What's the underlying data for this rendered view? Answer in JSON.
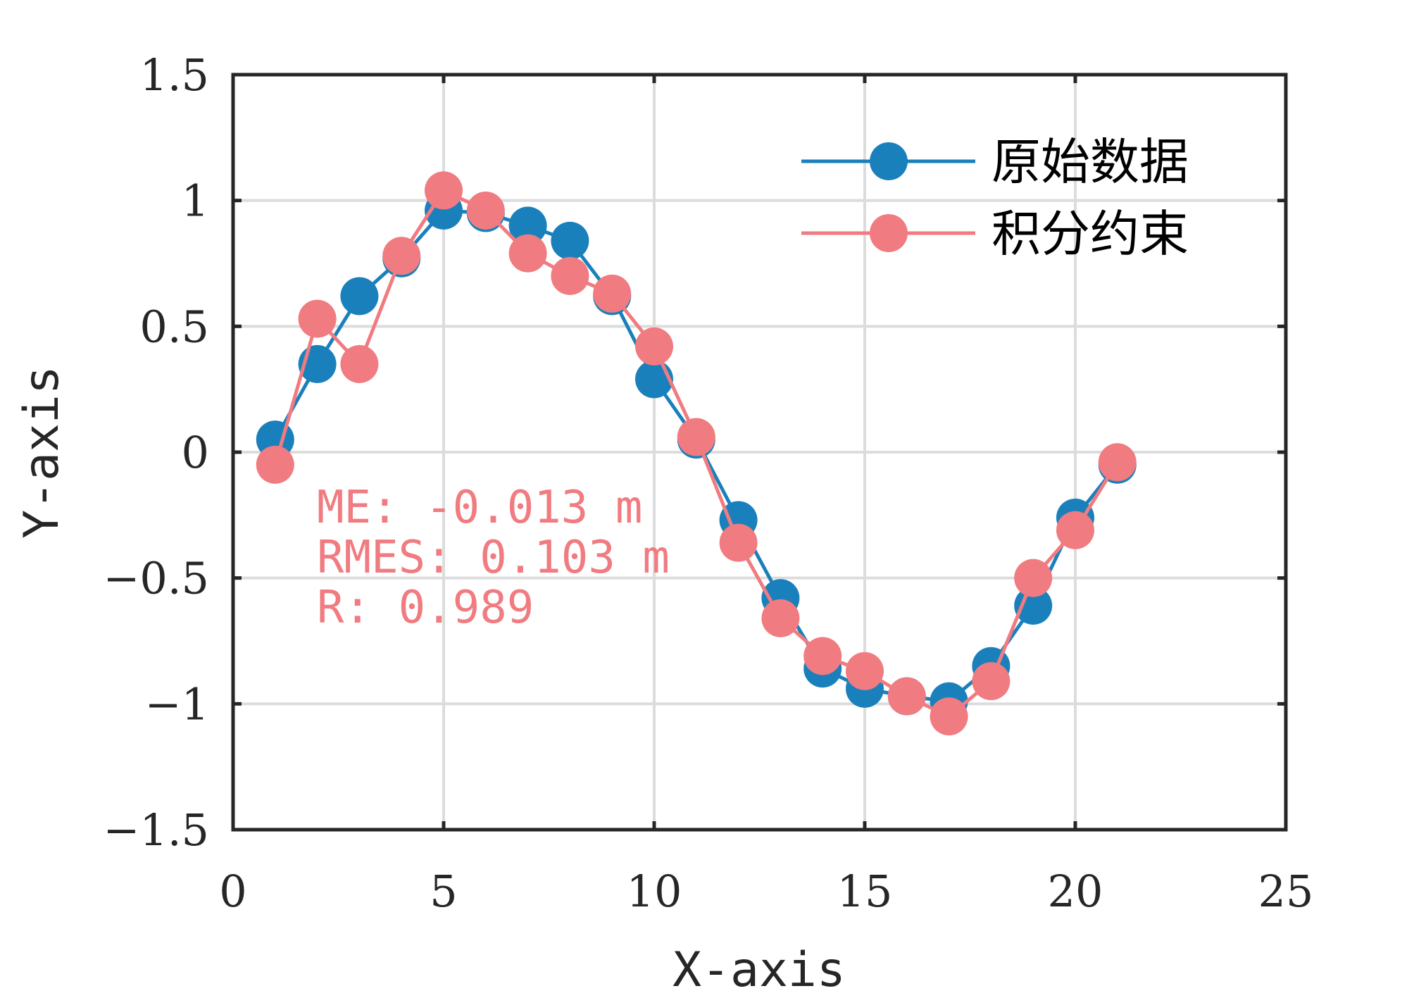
{
  "chart_data": {
    "type": "line",
    "title": "",
    "xlabel": "X-axis",
    "ylabel": "Y-axis",
    "xlim": [
      0,
      25
    ],
    "ylim": [
      -1.5,
      1.5
    ],
    "xticks": [
      0,
      5,
      10,
      15,
      20,
      25
    ],
    "xtick_labels": [
      "0",
      "5",
      "10",
      "15",
      "20",
      "25"
    ],
    "yticks": [
      -1.5,
      -1,
      -0.5,
      0,
      0.5,
      1,
      1.5
    ],
    "ytick_labels": [
      "−1.5",
      "−1",
      "−0.5",
      "0",
      "0.5",
      "1",
      "1.5"
    ],
    "grid": true,
    "legend_position": "top-right",
    "x": [
      1,
      2,
      3,
      4,
      5,
      6,
      7,
      8,
      9,
      10,
      11,
      12,
      13,
      14,
      15,
      16,
      17,
      18,
      19,
      20,
      21
    ],
    "series": [
      {
        "name": "原始数据",
        "color": "#1a80bb",
        "values": [
          0.05,
          0.35,
          0.62,
          0.77,
          0.96,
          0.95,
          0.9,
          0.84,
          0.62,
          0.29,
          0.05,
          -0.27,
          -0.58,
          -0.86,
          -0.94,
          -0.97,
          -0.99,
          -0.85,
          -0.61,
          -0.26,
          -0.05
        ]
      },
      {
        "name": "积分约束",
        "color": "#f07b80",
        "values": [
          -0.05,
          0.53,
          0.35,
          0.78,
          1.04,
          0.96,
          0.79,
          0.7,
          0.63,
          0.42,
          0.06,
          -0.36,
          -0.66,
          -0.81,
          -0.87,
          -0.97,
          -1.05,
          -0.91,
          -0.5,
          -0.31,
          -0.04
        ]
      }
    ],
    "annotations": {
      "color": "#f07b80",
      "lines": [
        "ME: -0.013 m",
        "RMES: 0.103 m",
        "R: 0.989"
      ]
    }
  }
}
